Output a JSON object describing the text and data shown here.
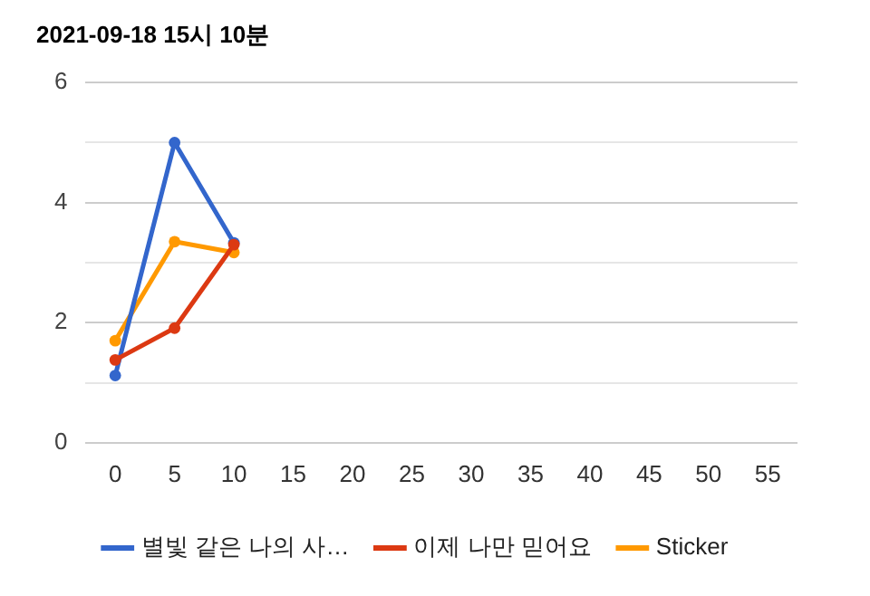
{
  "chart_data": {
    "type": "line",
    "title": "2021-09-18 15시 10분",
    "categories": [
      "0",
      "5",
      "10",
      "15",
      "20",
      "25",
      "30",
      "35",
      "40",
      "45",
      "50",
      "55"
    ],
    "series": [
      {
        "name": "별빛 같은 나의 사…",
        "color": "#3366cc",
        "values": [
          1.12,
          5.0,
          3.33,
          null,
          null,
          null,
          null,
          null,
          null,
          null,
          null,
          null
        ]
      },
      {
        "name": "이제 나만 믿어요",
        "color": "#dc3912",
        "values": [
          1.38,
          1.91,
          3.3,
          null,
          null,
          null,
          null,
          null,
          null,
          null,
          null,
          null
        ]
      },
      {
        "name": "Sticker",
        "color": "#ff9900",
        "values": [
          1.7,
          3.35,
          3.17,
          null,
          null,
          null,
          null,
          null,
          null,
          null,
          null,
          null
        ]
      }
    ],
    "ylim": [
      0,
      6
    ],
    "yticks": [
      0,
      {
        "value": 1,
        "label": null
      },
      2,
      {
        "value": 3,
        "label": null
      },
      4,
      {
        "value": 5,
        "label": null
      },
      6
    ],
    "grid": "y",
    "legend": "bottom",
    "marker": "circle",
    "line_style": "solid"
  }
}
